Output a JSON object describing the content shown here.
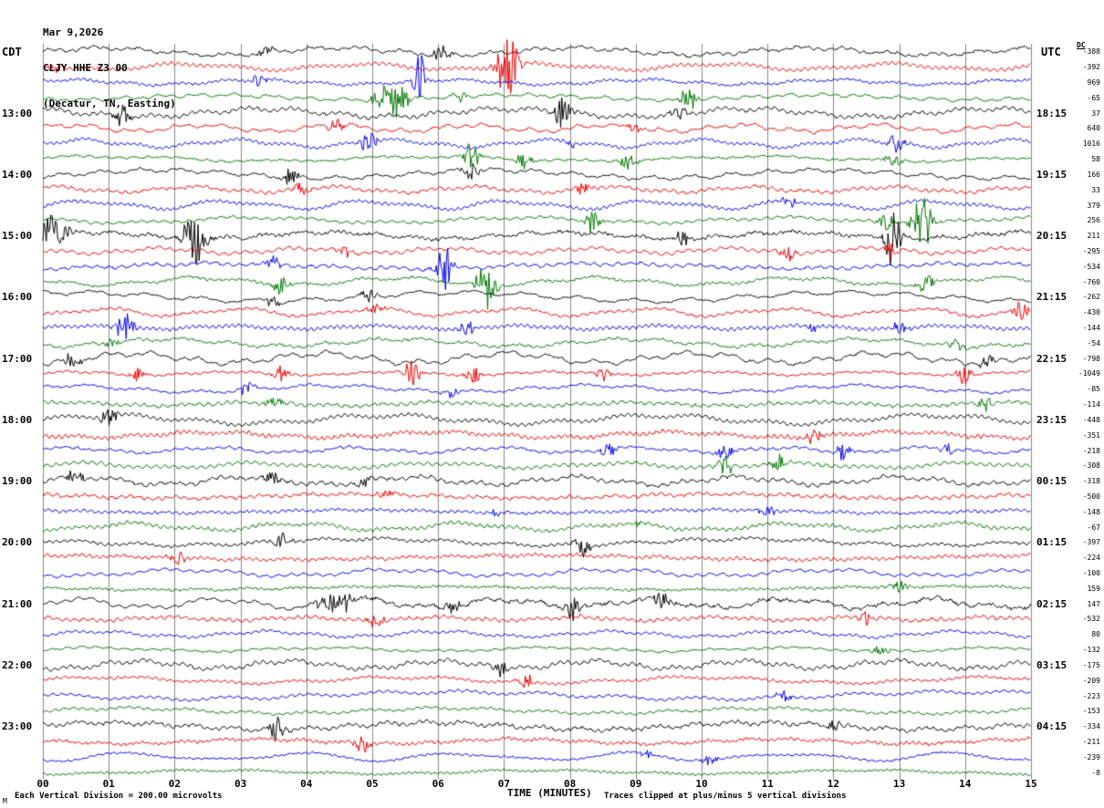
{
  "header": {
    "date": "Mar 9,2026",
    "station_line": "CLJY HHE Z3 00",
    "location_line": "(Decatur, TN, Easting)"
  },
  "axis": {
    "left_tz": "CDT",
    "right_tz": "UTC",
    "dc_header": "DC",
    "x_title": "TIME (MINUTES)",
    "x_ticks": [
      "00",
      "01",
      "02",
      "03",
      "04",
      "05",
      "06",
      "07",
      "08",
      "09",
      "10",
      "11",
      "12",
      "13",
      "14",
      "15"
    ]
  },
  "footer": {
    "scale_note": "Each Vertical Division =  200.00 microvolts",
    "clip_note": "Traces clipped at plus/minus 5 vertical divisions",
    "corner_mark": "M"
  },
  "chart_data": {
    "type": "line",
    "kind": "seismogram-helicorder",
    "title": "CLJY HHE Z3 00 (Decatur, TN, Easting) Mar 9,2026",
    "xlabel": "TIME (MINUTES)",
    "x_range": [
      0,
      15
    ],
    "minutes_per_line": 15,
    "traces_per_hour": 4,
    "rows": 48,
    "trace_colors": [
      "#000000",
      "#ee0000",
      "#0000ee",
      "#007700"
    ],
    "grid_color": "#888888",
    "hours_cdt": [
      "13:00",
      "14:00",
      "15:00",
      "16:00",
      "17:00",
      "18:00",
      "19:00",
      "20:00",
      "21:00",
      "22:00",
      "23:00"
    ],
    "hours_utc": [
      "18:15",
      "19:15",
      "20:15",
      "21:15",
      "22:15",
      "23:15",
      "00:15",
      "01:15",
      "02:15",
      "03:15",
      "04:15"
    ],
    "dc_offsets": [
      -388,
      -392,
      969,
      -65,
      37,
      640,
      1016,
      58,
      166,
      33,
      379,
      256,
      211,
      -295,
      -534,
      -760,
      -262,
      -430,
      -144,
      -54,
      -798,
      -1049,
      -85,
      -114,
      -448,
      -351,
      -218,
      -308,
      -318,
      -500,
      -148,
      -67,
      -397,
      -224,
      -100,
      159,
      147,
      -532,
      80,
      -132,
      -175,
      -209,
      -223,
      -153,
      -334,
      -211,
      -239,
      -8
    ],
    "events": [
      [
        0,
        3.4,
        6
      ],
      [
        0,
        6.05,
        10
      ],
      [
        1,
        0.2,
        8
      ],
      [
        1,
        7.05,
        34,
        0.18
      ],
      [
        2,
        3.3,
        8
      ],
      [
        2,
        5.72,
        30,
        0.1
      ],
      [
        3,
        5.3,
        20,
        0.25
      ],
      [
        3,
        6.3,
        8
      ],
      [
        3,
        9.8,
        13
      ],
      [
        4,
        1.2,
        16
      ],
      [
        4,
        7.9,
        18
      ],
      [
        4,
        9.65,
        8
      ],
      [
        5,
        4.45,
        9
      ],
      [
        5,
        9.0,
        6
      ],
      [
        6,
        4.95,
        12
      ],
      [
        6,
        8.0,
        6
      ],
      [
        6,
        12.95,
        10
      ],
      [
        7,
        6.5,
        16
      ],
      [
        7,
        7.3,
        10
      ],
      [
        7,
        8.9,
        12
      ],
      [
        7,
        12.9,
        8
      ],
      [
        8,
        3.75,
        10
      ],
      [
        8,
        6.5,
        12
      ],
      [
        9,
        3.95,
        9
      ],
      [
        9,
        8.2,
        8
      ],
      [
        10,
        11.3,
        7
      ],
      [
        11,
        8.35,
        14
      ],
      [
        11,
        12.8,
        10
      ],
      [
        11,
        13.35,
        32,
        0.15
      ],
      [
        12,
        0.15,
        26,
        0.2
      ],
      [
        12,
        2.3,
        30,
        0.2
      ],
      [
        12,
        9.7,
        10
      ],
      [
        12,
        12.9,
        34,
        0.12
      ],
      [
        13,
        4.6,
        8
      ],
      [
        13,
        11.3,
        8
      ],
      [
        13,
        12.9,
        10
      ],
      [
        14,
        3.5,
        8
      ],
      [
        14,
        6.1,
        24,
        0.12
      ],
      [
        15,
        3.6,
        10
      ],
      [
        15,
        6.75,
        30,
        0.15
      ],
      [
        15,
        13.4,
        12
      ],
      [
        16,
        3.5,
        6
      ],
      [
        16,
        4.95,
        8
      ],
      [
        17,
        5.05,
        7
      ],
      [
        17,
        14.85,
        10
      ],
      [
        18,
        1.25,
        18,
        0.12
      ],
      [
        18,
        6.45,
        8
      ],
      [
        18,
        11.7,
        8
      ],
      [
        18,
        13.0,
        8
      ],
      [
        19,
        1.05,
        6
      ],
      [
        19,
        13.9,
        8
      ],
      [
        20,
        0.45,
        10
      ],
      [
        20,
        14.35,
        8
      ],
      [
        21,
        1.45,
        8
      ],
      [
        21,
        3.6,
        10
      ],
      [
        21,
        5.6,
        14
      ],
      [
        21,
        6.55,
        10
      ],
      [
        21,
        8.5,
        8
      ],
      [
        21,
        14.0,
        12
      ],
      [
        22,
        3.1,
        8
      ],
      [
        22,
        6.2,
        6
      ],
      [
        23,
        3.5,
        8
      ],
      [
        23,
        14.3,
        8
      ],
      [
        24,
        1.0,
        12
      ],
      [
        25,
        11.7,
        7
      ],
      [
        26,
        8.6,
        9
      ],
      [
        26,
        10.35,
        8
      ],
      [
        26,
        12.15,
        9
      ],
      [
        26,
        13.75,
        7
      ],
      [
        27,
        10.35,
        12
      ],
      [
        27,
        11.15,
        10
      ],
      [
        28,
        0.5,
        9
      ],
      [
        28,
        3.5,
        8
      ],
      [
        28,
        4.85,
        7
      ],
      [
        29,
        5.2,
        6
      ],
      [
        30,
        6.9,
        5
      ],
      [
        30,
        11.0,
        8
      ],
      [
        31,
        9.0,
        4
      ],
      [
        32,
        3.65,
        12
      ],
      [
        32,
        8.2,
        14
      ],
      [
        33,
        2.05,
        8
      ],
      [
        35,
        13.0,
        8
      ],
      [
        36,
        4.45,
        14,
        0.3
      ],
      [
        36,
        6.2,
        8
      ],
      [
        36,
        8.05,
        14
      ],
      [
        36,
        9.4,
        10
      ],
      [
        37,
        5.05,
        10
      ],
      [
        37,
        12.5,
        7
      ],
      [
        39,
        12.7,
        8
      ],
      [
        40,
        6.95,
        8
      ],
      [
        41,
        7.35,
        9
      ],
      [
        42,
        11.25,
        7
      ],
      [
        44,
        3.55,
        16
      ],
      [
        44,
        12.0,
        8
      ],
      [
        45,
        4.85,
        10
      ],
      [
        46,
        9.15,
        6
      ],
      [
        46,
        10.1,
        6
      ]
    ]
  }
}
